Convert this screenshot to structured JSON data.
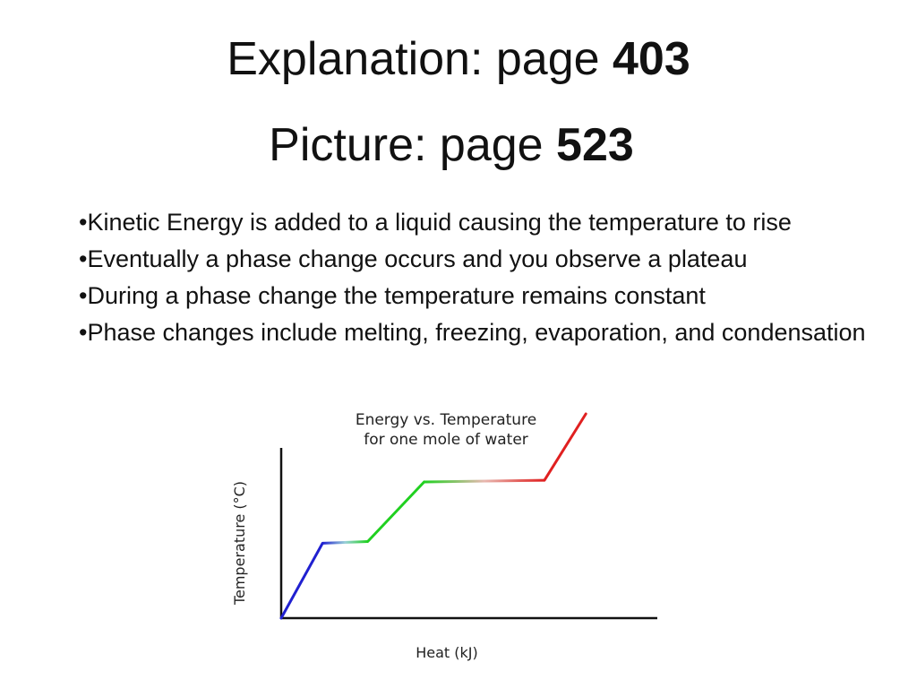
{
  "slide": {
    "line1_prefix": "Explanation: page ",
    "line1_page": "403",
    "line2_prefix": "Picture: page ",
    "line2_page": "523"
  },
  "bullets": [
    "•Kinetic Energy is added to a liquid causing the temperature to rise",
    "•Eventually a phase change occurs and you observe a plateau",
    "•During a phase change the temperature remains constant",
    "•Phase changes include melting, freezing, evaporation, and condensation"
  ],
  "chart_data": {
    "type": "line",
    "title": "Energy vs. Temperature",
    "subtitle": "for one mole of water",
    "xlabel": "Heat (kJ)",
    "ylabel": "Temperature (°C)",
    "grid": false,
    "legend": "none",
    "xlim": [
      0,
      100
    ],
    "ylim": [
      0,
      100
    ],
    "series": [
      {
        "color": "#2020d0",
        "points": [
          [
            0,
            0
          ],
          [
            11,
            44
          ]
        ]
      },
      {
        "color": "#20d020",
        "points": [
          [
            11,
            44
          ],
          [
            23,
            45
          ],
          [
            38,
            80
          ],
          [
            70,
            80
          ]
        ]
      },
      {
        "color": "#e02020",
        "points": [
          [
            70,
            81
          ],
          [
            81,
            120
          ]
        ]
      }
    ],
    "plateaus": [
      {
        "from": [
          11,
          44
        ],
        "to": [
          23,
          45
        ],
        "colors": [
          "#2020d0",
          "#20d020"
        ]
      },
      {
        "from": [
          38,
          80
        ],
        "to": [
          70,
          81
        ],
        "colors": [
          "#20d020",
          "#e02020"
        ]
      }
    ]
  }
}
